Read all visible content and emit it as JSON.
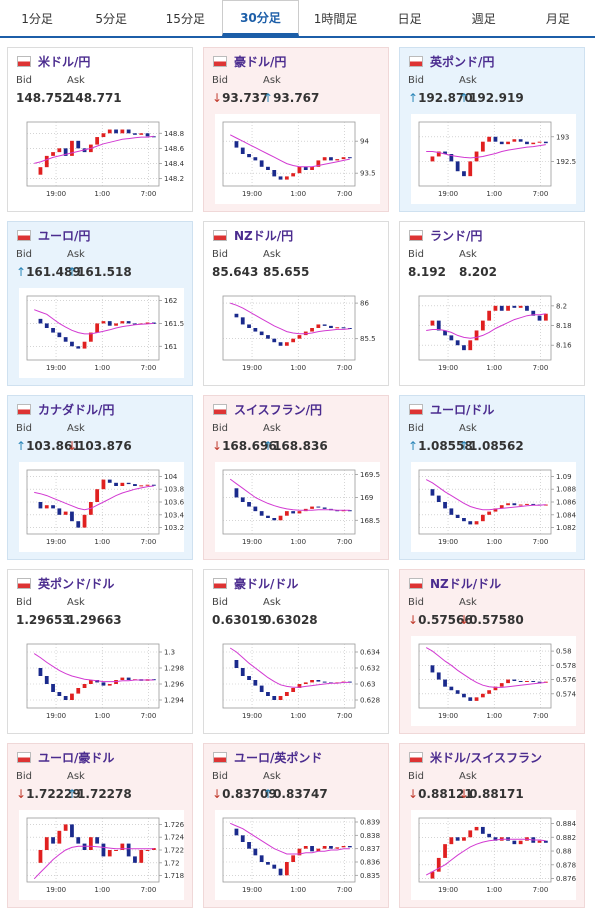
{
  "tabs": [
    {
      "label": "1分足",
      "active": false
    },
    {
      "label": "5分足",
      "active": false
    },
    {
      "label": "15分足",
      "active": false
    },
    {
      "label": "30分足",
      "active": true
    },
    {
      "label": "1時間足",
      "active": false
    },
    {
      "label": "日足",
      "active": false
    },
    {
      "label": "週足",
      "active": false
    },
    {
      "label": "月足",
      "active": false
    }
  ],
  "cards": [
    {
      "pair": "米ドル/円",
      "trend": null,
      "bid_label": "Bid",
      "ask_label": "Ask",
      "bid_arrow": null,
      "bid": "148.752",
      "ask_arrow": null,
      "ask": "148.771",
      "chart": {
        "type": "candlestick",
        "ylim": [
          148.1,
          148.95
        ],
        "yticks": [
          148.2,
          148.4,
          148.6,
          148.8
        ],
        "xticks": [
          "19:00",
          "1:00",
          "7:00"
        ],
        "values": [
          148.25,
          148.35,
          148.5,
          148.55,
          148.6,
          148.5,
          148.7,
          148.6,
          148.55,
          148.65,
          148.75,
          148.8,
          148.85,
          148.8,
          148.85,
          148.8,
          148.78,
          148.8,
          148.76,
          148.75
        ],
        "ma": [
          148.4,
          148.42,
          148.45,
          148.48,
          148.5,
          148.52,
          148.54,
          148.56,
          148.58,
          148.6,
          148.63,
          148.66,
          148.68,
          148.7,
          148.72,
          148.73,
          148.74,
          148.75,
          148.75,
          148.76
        ]
      }
    },
    {
      "pair": "豪ドル/円",
      "trend": "down",
      "bid_label": "Bid",
      "ask_label": "Ask",
      "bid_arrow": "↓",
      "bid": "93.737",
      "ask_arrow": "↑",
      "ask": "93.767",
      "chart": {
        "type": "candlestick",
        "ylim": [
          93.3,
          94.3
        ],
        "yticks": [
          93.5,
          94
        ],
        "xticks": [
          "19:00",
          "1:00",
          "7:00"
        ],
        "values": [
          94.0,
          93.9,
          93.8,
          93.75,
          93.7,
          93.6,
          93.55,
          93.45,
          93.4,
          93.45,
          93.5,
          93.6,
          93.55,
          93.6,
          93.7,
          93.75,
          93.7,
          93.72,
          93.75,
          93.74
        ],
        "ma": [
          94.1,
          94.05,
          94.0,
          93.95,
          93.9,
          93.85,
          93.8,
          93.75,
          93.7,
          93.65,
          93.62,
          93.6,
          93.6,
          93.6,
          93.62,
          93.64,
          93.66,
          93.68,
          93.7,
          93.72
        ]
      }
    },
    {
      "pair": "英ポンド/円",
      "trend": "up",
      "bid_label": "Bid",
      "ask_label": "Ask",
      "bid_arrow": "↑",
      "bid": "192.870",
      "ask_arrow": "↑",
      "ask": "192.919",
      "chart": {
        "type": "candlestick",
        "ylim": [
          192.0,
          193.3
        ],
        "yticks": [
          192.5,
          193
        ],
        "xticks": [
          "19:00",
          "1:00",
          "7:00"
        ],
        "values": [
          192.5,
          192.6,
          192.7,
          192.65,
          192.5,
          192.3,
          192.2,
          192.5,
          192.7,
          192.9,
          193.0,
          192.9,
          192.85,
          192.9,
          192.95,
          192.9,
          192.85,
          192.88,
          192.9,
          192.87
        ],
        "ma": [
          192.7,
          192.7,
          192.68,
          192.65,
          192.62,
          192.6,
          192.58,
          192.57,
          192.58,
          192.6,
          192.63,
          192.66,
          192.7,
          192.73,
          192.75,
          192.77,
          192.79,
          192.8,
          192.82,
          192.84
        ]
      }
    },
    {
      "pair": "ユーロ/円",
      "trend": "up",
      "bid_label": "Bid",
      "ask_label": "Ask",
      "bid_arrow": "↑",
      "bid": "161.489",
      "ask_arrow": "↑",
      "ask": "161.518",
      "chart": {
        "type": "candlestick",
        "ylim": [
          160.7,
          162.1
        ],
        "yticks": [
          161,
          161.5,
          162
        ],
        "xticks": [
          "19:00",
          "1:00",
          "7:00"
        ],
        "values": [
          161.6,
          161.5,
          161.4,
          161.3,
          161.2,
          161.1,
          161.0,
          160.95,
          161.1,
          161.3,
          161.5,
          161.55,
          161.45,
          161.5,
          161.55,
          161.5,
          161.48,
          161.5,
          161.52,
          161.49
        ],
        "ma": [
          161.8,
          161.75,
          161.7,
          161.6,
          161.5,
          161.42,
          161.35,
          161.3,
          161.27,
          161.27,
          161.3,
          161.33,
          161.36,
          161.4,
          161.43,
          161.45,
          161.47,
          161.48,
          161.49,
          161.5
        ]
      }
    },
    {
      "pair": "NZドル/円",
      "trend": null,
      "bid_label": "Bid",
      "ask_label": "Ask",
      "bid_arrow": null,
      "bid": "85.643",
      "ask_arrow": null,
      "ask": "85.655",
      "chart": {
        "type": "candlestick",
        "ylim": [
          85.2,
          86.1
        ],
        "yticks": [
          85.5,
          86
        ],
        "xticks": [
          "19:00",
          "1:00",
          "7:00"
        ],
        "values": [
          85.85,
          85.8,
          85.7,
          85.65,
          85.6,
          85.55,
          85.5,
          85.45,
          85.4,
          85.45,
          85.5,
          85.55,
          85.6,
          85.65,
          85.7,
          85.68,
          85.65,
          85.66,
          85.65,
          85.64
        ],
        "ma": [
          86.0,
          85.97,
          85.93,
          85.88,
          85.83,
          85.78,
          85.73,
          85.68,
          85.64,
          85.6,
          85.58,
          85.57,
          85.57,
          85.58,
          85.6,
          85.61,
          85.62,
          85.63,
          85.63,
          85.64
        ]
      }
    },
    {
      "pair": "ランド/円",
      "trend": null,
      "bid_label": "Bid",
      "ask_label": "Ask",
      "bid_arrow": null,
      "bid": "8.192",
      "ask_arrow": null,
      "ask": "8.202",
      "chart": {
        "type": "candlestick",
        "ylim": [
          8.145,
          8.21
        ],
        "yticks": [
          8.16,
          8.18,
          8.2
        ],
        "xticks": [
          "19:00",
          "1:00",
          "7:00"
        ],
        "values": [
          8.18,
          8.185,
          8.175,
          8.17,
          8.165,
          8.16,
          8.155,
          8.165,
          8.175,
          8.185,
          8.195,
          8.2,
          8.195,
          8.2,
          8.198,
          8.2,
          8.195,
          8.19,
          8.185,
          8.192
        ],
        "ma": [
          8.175,
          8.176,
          8.176,
          8.175,
          8.173,
          8.17,
          8.168,
          8.167,
          8.168,
          8.17,
          8.173,
          8.177,
          8.18,
          8.183,
          8.186,
          8.188,
          8.19,
          8.191,
          8.191,
          8.192
        ]
      }
    },
    {
      "pair": "カナダドル/円",
      "trend": "up",
      "bid_label": "Bid",
      "ask_label": "Ask",
      "bid_arrow": "↑",
      "bid": "103.861",
      "ask_arrow": "↓",
      "ask": "103.876",
      "chart": {
        "type": "candlestick",
        "ylim": [
          103.1,
          104.1
        ],
        "yticks": [
          103.2,
          103.4,
          103.6,
          103.8,
          104
        ],
        "xticks": [
          "19:00",
          "1:00",
          "7:00"
        ],
        "values": [
          103.6,
          103.5,
          103.55,
          103.5,
          103.4,
          103.45,
          103.3,
          103.2,
          103.4,
          103.6,
          103.8,
          103.95,
          103.9,
          103.85,
          103.9,
          103.88,
          103.85,
          103.86,
          103.87,
          103.86
        ],
        "ma": [
          103.75,
          103.73,
          103.7,
          103.66,
          103.62,
          103.58,
          103.54,
          103.5,
          103.48,
          103.5,
          103.55,
          103.6,
          103.65,
          103.7,
          103.74,
          103.77,
          103.8,
          103.82,
          103.84,
          103.85
        ]
      }
    },
    {
      "pair": "スイスフラン/円",
      "trend": "down",
      "bid_label": "Bid",
      "ask_label": "Ask",
      "bid_arrow": "↓",
      "bid": "168.696",
      "ask_arrow": "↑",
      "ask": "168.836",
      "chart": {
        "type": "candlestick",
        "ylim": [
          168.2,
          169.6
        ],
        "yticks": [
          168.5,
          169,
          169.5
        ],
        "xticks": [
          "19:00",
          "1:00",
          "7:00"
        ],
        "values": [
          169.2,
          169.0,
          168.9,
          168.8,
          168.7,
          168.6,
          168.55,
          168.5,
          168.6,
          168.7,
          168.65,
          168.7,
          168.75,
          168.8,
          168.78,
          168.75,
          168.72,
          168.7,
          168.72,
          168.7
        ],
        "ma": [
          169.4,
          169.3,
          169.2,
          169.1,
          169.0,
          168.93,
          168.87,
          168.82,
          168.78,
          168.75,
          168.73,
          168.72,
          168.72,
          168.72,
          168.73,
          168.73,
          168.73,
          168.72,
          168.72,
          168.72
        ]
      }
    },
    {
      "pair": "ユーロ/ドル",
      "trend": "up",
      "bid_label": "Bid",
      "ask_label": "Ask",
      "bid_arrow": "↑",
      "bid": "1.08558",
      "ask_arrow": "↑",
      "ask": "1.08562",
      "chart": {
        "type": "candlestick",
        "ylim": [
          1.081,
          1.091
        ],
        "yticks": [
          1.082,
          1.084,
          1.086,
          1.088,
          1.09
        ],
        "xticks": [
          "19:00",
          "1:00",
          "7:00"
        ],
        "values": [
          1.088,
          1.087,
          1.086,
          1.085,
          1.084,
          1.0835,
          1.083,
          1.0825,
          1.083,
          1.084,
          1.0845,
          1.085,
          1.0855,
          1.0858,
          1.0855,
          1.0856,
          1.0857,
          1.0856,
          1.0855,
          1.0856
        ],
        "ma": [
          1.0895,
          1.089,
          1.0883,
          1.0876,
          1.087,
          1.0864,
          1.0858,
          1.0853,
          1.085,
          1.0848,
          1.0848,
          1.0849,
          1.085,
          1.0851,
          1.0852,
          1.0853,
          1.0854,
          1.0855,
          1.0855,
          1.0856
        ]
      }
    },
    {
      "pair": "英ポンド/ドル",
      "trend": null,
      "bid_label": "Bid",
      "ask_label": "Ask",
      "bid_arrow": null,
      "bid": "1.29653",
      "ask_arrow": null,
      "ask": "1.29663",
      "chart": {
        "type": "candlestick",
        "ylim": [
          1.293,
          1.301
        ],
        "yticks": [
          1.294,
          1.296,
          1.298,
          1.3
        ],
        "xticks": [
          "19:00",
          "1:00",
          "7:00"
        ],
        "values": [
          1.298,
          1.297,
          1.296,
          1.295,
          1.2945,
          1.294,
          1.2948,
          1.2955,
          1.296,
          1.2965,
          1.2962,
          1.2958,
          1.296,
          1.2965,
          1.2968,
          1.2965,
          1.2966,
          1.2964,
          1.2966,
          1.2965
        ],
        "ma": [
          1.2998,
          1.2993,
          1.2987,
          1.2982,
          1.2977,
          1.2973,
          1.297,
          1.2968,
          1.2966,
          1.2965,
          1.2964,
          1.2963,
          1.2963,
          1.2963,
          1.2964,
          1.2964,
          1.2965,
          1.2965,
          1.2965,
          1.2965
        ]
      }
    },
    {
      "pair": "豪ドル/ドル",
      "trend": null,
      "bid_label": "Bid",
      "ask_label": "Ask",
      "bid_arrow": null,
      "bid": "0.63019",
      "ask_arrow": null,
      "ask": "0.63028",
      "chart": {
        "type": "candlestick",
        "ylim": [
          0.627,
          0.635
        ],
        "yticks": [
          0.628,
          0.63,
          0.632,
          0.634
        ],
        "xticks": [
          "19:00",
          "1:00",
          "7:00"
        ],
        "values": [
          0.633,
          0.632,
          0.631,
          0.6305,
          0.6298,
          0.629,
          0.6285,
          0.628,
          0.6285,
          0.629,
          0.6295,
          0.63,
          0.6302,
          0.6305,
          0.6303,
          0.6302,
          0.6301,
          0.6302,
          0.6303,
          0.6302
        ],
        "ma": [
          0.6345,
          0.634,
          0.6333,
          0.6326,
          0.632,
          0.6314,
          0.6308,
          0.6303,
          0.6299,
          0.6297,
          0.6296,
          0.6296,
          0.6297,
          0.6298,
          0.6299,
          0.63,
          0.6301,
          0.6301,
          0.6302,
          0.6302
        ]
      }
    },
    {
      "pair": "NZドル/ドル",
      "trend": "down",
      "bid_label": "Bid",
      "ask_label": "Ask",
      "bid_arrow": "↓",
      "bid": "0.57566",
      "ask_arrow": "↓",
      "ask": "0.57580",
      "chart": {
        "type": "candlestick",
        "ylim": [
          0.572,
          0.581
        ],
        "yticks": [
          0.574,
          0.576,
          0.578,
          0.58
        ],
        "xticks": [
          "19:00",
          "1:00",
          "7:00"
        ],
        "values": [
          0.578,
          0.577,
          0.576,
          0.575,
          0.5745,
          0.574,
          0.5735,
          0.573,
          0.5735,
          0.574,
          0.5745,
          0.575,
          0.5755,
          0.576,
          0.5758,
          0.5757,
          0.5758,
          0.5757,
          0.5756,
          0.5757
        ],
        "ma": [
          0.5805,
          0.58,
          0.5793,
          0.5786,
          0.578,
          0.5773,
          0.5767,
          0.5761,
          0.5756,
          0.5752,
          0.575,
          0.5749,
          0.5749,
          0.575,
          0.5751,
          0.5752,
          0.5753,
          0.5754,
          0.5755,
          0.5756
        ]
      }
    },
    {
      "pair": "ユーロ/豪ドル",
      "trend": "down",
      "bid_label": "Bid",
      "ask_label": "Ask",
      "bid_arrow": "↓",
      "bid": "1.72229",
      "ask_arrow": "↑",
      "ask": "1.72278",
      "chart": {
        "type": "candlestick",
        "ylim": [
          1.717,
          1.727
        ],
        "yticks": [
          1.718,
          1.72,
          1.722,
          1.724,
          1.726
        ],
        "xticks": [
          "19:00",
          "1:00",
          "7:00"
        ],
        "values": [
          1.72,
          1.722,
          1.724,
          1.723,
          1.725,
          1.726,
          1.724,
          1.723,
          1.722,
          1.724,
          1.723,
          1.721,
          1.722,
          1.722,
          1.723,
          1.721,
          1.72,
          1.722,
          1.722,
          1.7223
        ],
        "ma": [
          1.7175,
          1.7185,
          1.7195,
          1.7205,
          1.7213,
          1.722,
          1.7224,
          1.7226,
          1.7226,
          1.7226,
          1.7225,
          1.7224,
          1.7223,
          1.7222,
          1.7222,
          1.7222,
          1.7222,
          1.7222,
          1.7222,
          1.7222
        ]
      }
    },
    {
      "pair": "ユーロ/英ポンド",
      "trend": "down",
      "bid_label": "Bid",
      "ask_label": "Ask",
      "bid_arrow": "↓",
      "bid": "0.83709",
      "ask_arrow": "↑",
      "ask": "0.83747",
      "chart": {
        "type": "candlestick",
        "ylim": [
          0.8345,
          0.8393
        ],
        "yticks": [
          0.835,
          0.836,
          0.837,
          0.838,
          0.839
        ],
        "xticks": [
          "19:00",
          "1:00",
          "7:00"
        ],
        "values": [
          0.8385,
          0.838,
          0.8375,
          0.837,
          0.8365,
          0.836,
          0.8358,
          0.8355,
          0.835,
          0.836,
          0.8365,
          0.837,
          0.8372,
          0.8368,
          0.837,
          0.8372,
          0.837,
          0.8371,
          0.8372,
          0.8371
        ],
        "ma": [
          0.8389,
          0.8387,
          0.8385,
          0.8382,
          0.8379,
          0.8376,
          0.8373,
          0.837,
          0.8368,
          0.8366,
          0.8366,
          0.8366,
          0.8367,
          0.8367,
          0.8368,
          0.8368,
          0.8369,
          0.8369,
          0.837,
          0.837
        ]
      }
    },
    {
      "pair": "米ドル/スイスフラン",
      "trend": "down",
      "bid_label": "Bid",
      "ask_label": "Ask",
      "bid_arrow": "↓",
      "bid": "0.88121",
      "ask_arrow": "↓",
      "ask": "0.88171",
      "chart": {
        "type": "candlestick",
        "ylim": [
          0.8755,
          0.8848
        ],
        "yticks": [
          0.876,
          0.878,
          0.88,
          0.882,
          0.884
        ],
        "xticks": [
          "19:00",
          "1:00",
          "7:00"
        ],
        "values": [
          0.876,
          0.877,
          0.879,
          0.881,
          0.882,
          0.8815,
          0.882,
          0.883,
          0.8835,
          0.8825,
          0.882,
          0.8815,
          0.882,
          0.8815,
          0.881,
          0.8815,
          0.882,
          0.8812,
          0.8815,
          0.8812
        ],
        "ma": [
          0.8765,
          0.877,
          0.8775,
          0.878,
          0.8787,
          0.8794,
          0.88,
          0.8806,
          0.881,
          0.8813,
          0.8815,
          0.8816,
          0.8817,
          0.8817,
          0.8817,
          0.8817,
          0.8817,
          0.8816,
          0.8816,
          0.8815
        ]
      }
    }
  ]
}
